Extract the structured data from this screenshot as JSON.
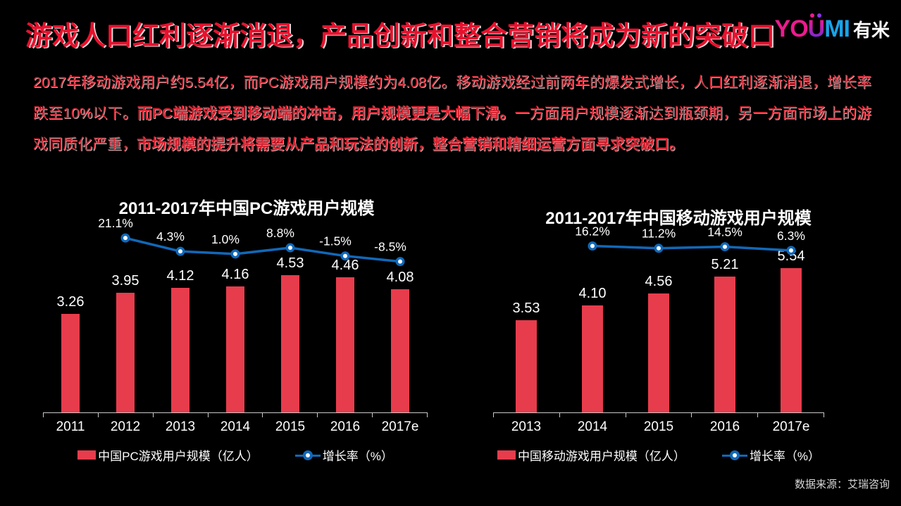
{
  "header": {
    "title": "游戏人口红利逐渐消退，产品创新和整合营销将成为新的突破口",
    "logo": {
      "yo": "YO",
      "u": "U",
      "mi": "MI",
      "cn": "有米"
    }
  },
  "intro": {
    "segments": [
      {
        "text": "2017年移动游戏用户约5.54亿，而PC游戏用户规模约为4.08亿。移动游戏经过前两年的爆发式增长，人口红利逐渐消退，增长率跌至10%以下。",
        "bold": false
      },
      {
        "text": "而PC端游戏受到移动端的冲击，用户规模更是大幅下滑。",
        "bold": true
      },
      {
        "text": "一方面用户规模逐渐达到瓶颈期，另一方面市场上的游戏同质化严重，",
        "bold": false
      },
      {
        "text": "市场规模的提升将需要从产品和玩法的创新，整合营销和精细运营方面寻求突破口。",
        "bold": true
      }
    ]
  },
  "chart_data": [
    {
      "type": "bar+line",
      "title": "2011-2017年中国PC游戏用户规模",
      "categories": [
        "2011",
        "2012",
        "2013",
        "2014",
        "2015",
        "2016",
        "2017e"
      ],
      "bar_series": {
        "name": "中国PC游戏用户规模（亿人）",
        "values": [
          3.26,
          3.95,
          4.12,
          4.16,
          4.53,
          4.46,
          4.08
        ],
        "unit": "亿人"
      },
      "line_series": {
        "name": "增长率（%）",
        "values": [
          null,
          21.1,
          4.3,
          1.0,
          8.8,
          -1.5,
          -8.5
        ],
        "unit": "%"
      },
      "legend": [
        "中国PC游戏用户规模（亿人）",
        "增长率（%）"
      ],
      "legend_position": "bottom",
      "grid": false
    },
    {
      "type": "bar+line",
      "title": "2011-2017年中国移动游戏用户规模",
      "categories": [
        "2013",
        "2014",
        "2015",
        "2016",
        "2017e"
      ],
      "bar_series": {
        "name": "中国移动游戏用户规模（亿人）",
        "values": [
          3.53,
          4.1,
          4.56,
          5.21,
          5.54
        ],
        "unit": "亿人"
      },
      "line_series": {
        "name": "增长率（%）",
        "values": [
          null,
          16.2,
          11.2,
          14.5,
          6.3
        ],
        "unit": "%"
      },
      "legend": [
        "中国移动游戏用户规模（亿人）",
        "增长率（%）"
      ],
      "legend_position": "bottom",
      "grid": false
    }
  ],
  "footer": {
    "source": "数据来源：艾瑞咨询"
  },
  "colors": {
    "background": "#000000",
    "title_red": "#e8112d",
    "body_red": "#d8202e",
    "bar_red": "#e73c4c",
    "line_blue": "#1168b8",
    "axis_gray": "#c9c9c9",
    "text_white": "#ffffff",
    "logo_pink": "#ec1b8d",
    "logo_blue": "#19a3e8",
    "source_gray": "#d6d6d6"
  }
}
